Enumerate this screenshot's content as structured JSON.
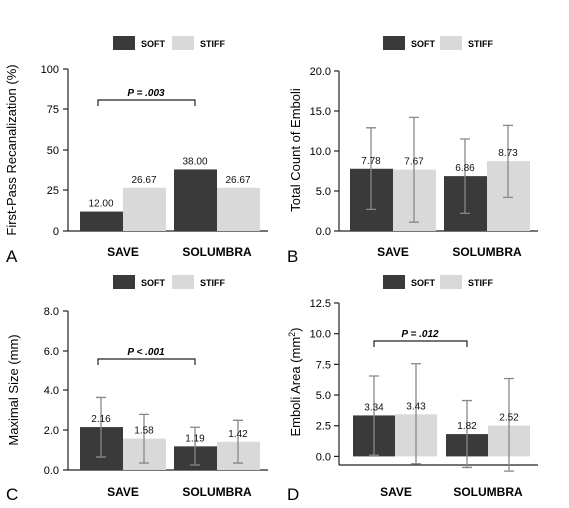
{
  "colors": {
    "soft": "#3a3a3a",
    "stiff": "#d9d9d9",
    "error": "#888888",
    "axis": "#222222"
  },
  "legend": {
    "soft": "SOFT",
    "stiff": "STIFF"
  },
  "chart_data": [
    {
      "panel": "A",
      "type": "bar",
      "categories": [
        "SAVE",
        "SOLUMBRA"
      ],
      "series": [
        {
          "name": "SOFT",
          "values": [
            12.0,
            38.0
          ],
          "labels": [
            "12.00",
            "38.00"
          ]
        },
        {
          "name": "STIFF",
          "values": [
            26.67,
            26.67
          ],
          "labels": [
            "26.67",
            "26.67"
          ]
        }
      ],
      "ylabel": "First-Pass Recanalization (%)",
      "ylim": [
        0,
        100
      ],
      "yticks": [
        "0",
        "25",
        "50",
        "75",
        "100"
      ],
      "annotation": "P = .003",
      "grid": false,
      "legend_position": "top"
    },
    {
      "panel": "B",
      "type": "bar",
      "categories": [
        "SAVE",
        "SOLUMBRA"
      ],
      "series": [
        {
          "name": "SOFT",
          "values": [
            7.78,
            6.86
          ],
          "labels": [
            "7.78",
            "6.86"
          ],
          "err": [
            [
              2.7,
              12.9
            ],
            [
              2.2,
              11.5
            ]
          ]
        },
        {
          "name": "STIFF",
          "values": [
            7.67,
            8.73
          ],
          "labels": [
            "7.67",
            "8.73"
          ],
          "err": [
            [
              1.1,
              14.2
            ],
            [
              4.2,
              13.2
            ]
          ]
        }
      ],
      "ylabel": "Total Count of Emboli",
      "ylim": [
        0,
        20
      ],
      "yticks": [
        "0.0",
        "5.0",
        "10.0",
        "15.0",
        "20.0"
      ],
      "grid": false,
      "legend_position": "top"
    },
    {
      "panel": "C",
      "type": "bar",
      "categories": [
        "SAVE",
        "SOLUMBRA"
      ],
      "series": [
        {
          "name": "SOFT",
          "values": [
            2.16,
            1.19
          ],
          "labels": [
            "2.16",
            "1.19"
          ],
          "err": [
            [
              0.65,
              3.65
            ],
            [
              0.25,
              2.15
            ]
          ]
        },
        {
          "name": "STIFF",
          "values": [
            1.58,
            1.42
          ],
          "labels": [
            "1.58",
            "1.42"
          ],
          "err": [
            [
              0.35,
              2.8
            ],
            [
              0.35,
              2.5
            ]
          ]
        }
      ],
      "ylabel": "Maximal Size (mm)",
      "ylim": [
        0,
        8
      ],
      "yticks": [
        "0.0",
        "2.0",
        "4.0",
        "6.0",
        "8.0"
      ],
      "annotation": "P < .001",
      "grid": false,
      "legend_position": "top"
    },
    {
      "panel": "D",
      "type": "bar",
      "categories": [
        "SAVE",
        "SOLUMBRA"
      ],
      "series": [
        {
          "name": "SOFT",
          "values": [
            3.34,
            1.82
          ],
          "labels": [
            "3.34",
            "1.82"
          ],
          "err": [
            [
              0.1,
              6.55
            ],
            [
              -0.9,
              4.55
            ]
          ]
        },
        {
          "name": "STIFF",
          "values": [
            3.43,
            2.52
          ],
          "labels": [
            "3.43",
            "2.52"
          ],
          "err": [
            [
              -0.6,
              7.55
            ],
            [
              -1.2,
              6.35
            ]
          ]
        }
      ],
      "ylabel_main": "Emboli Area  (mm",
      "ylabel_sup": "2",
      "ylabel_end": ")",
      "ylim": [
        -0.7,
        12.5
      ],
      "yticks": [
        "0.0",
        "2.5",
        "5.0",
        "7.5",
        "10.0",
        "12.5"
      ],
      "ytick_values": [
        0,
        2.5,
        5,
        7.5,
        10,
        12.5
      ],
      "annotation": "P = .012",
      "grid": false,
      "legend_position": "top"
    }
  ]
}
